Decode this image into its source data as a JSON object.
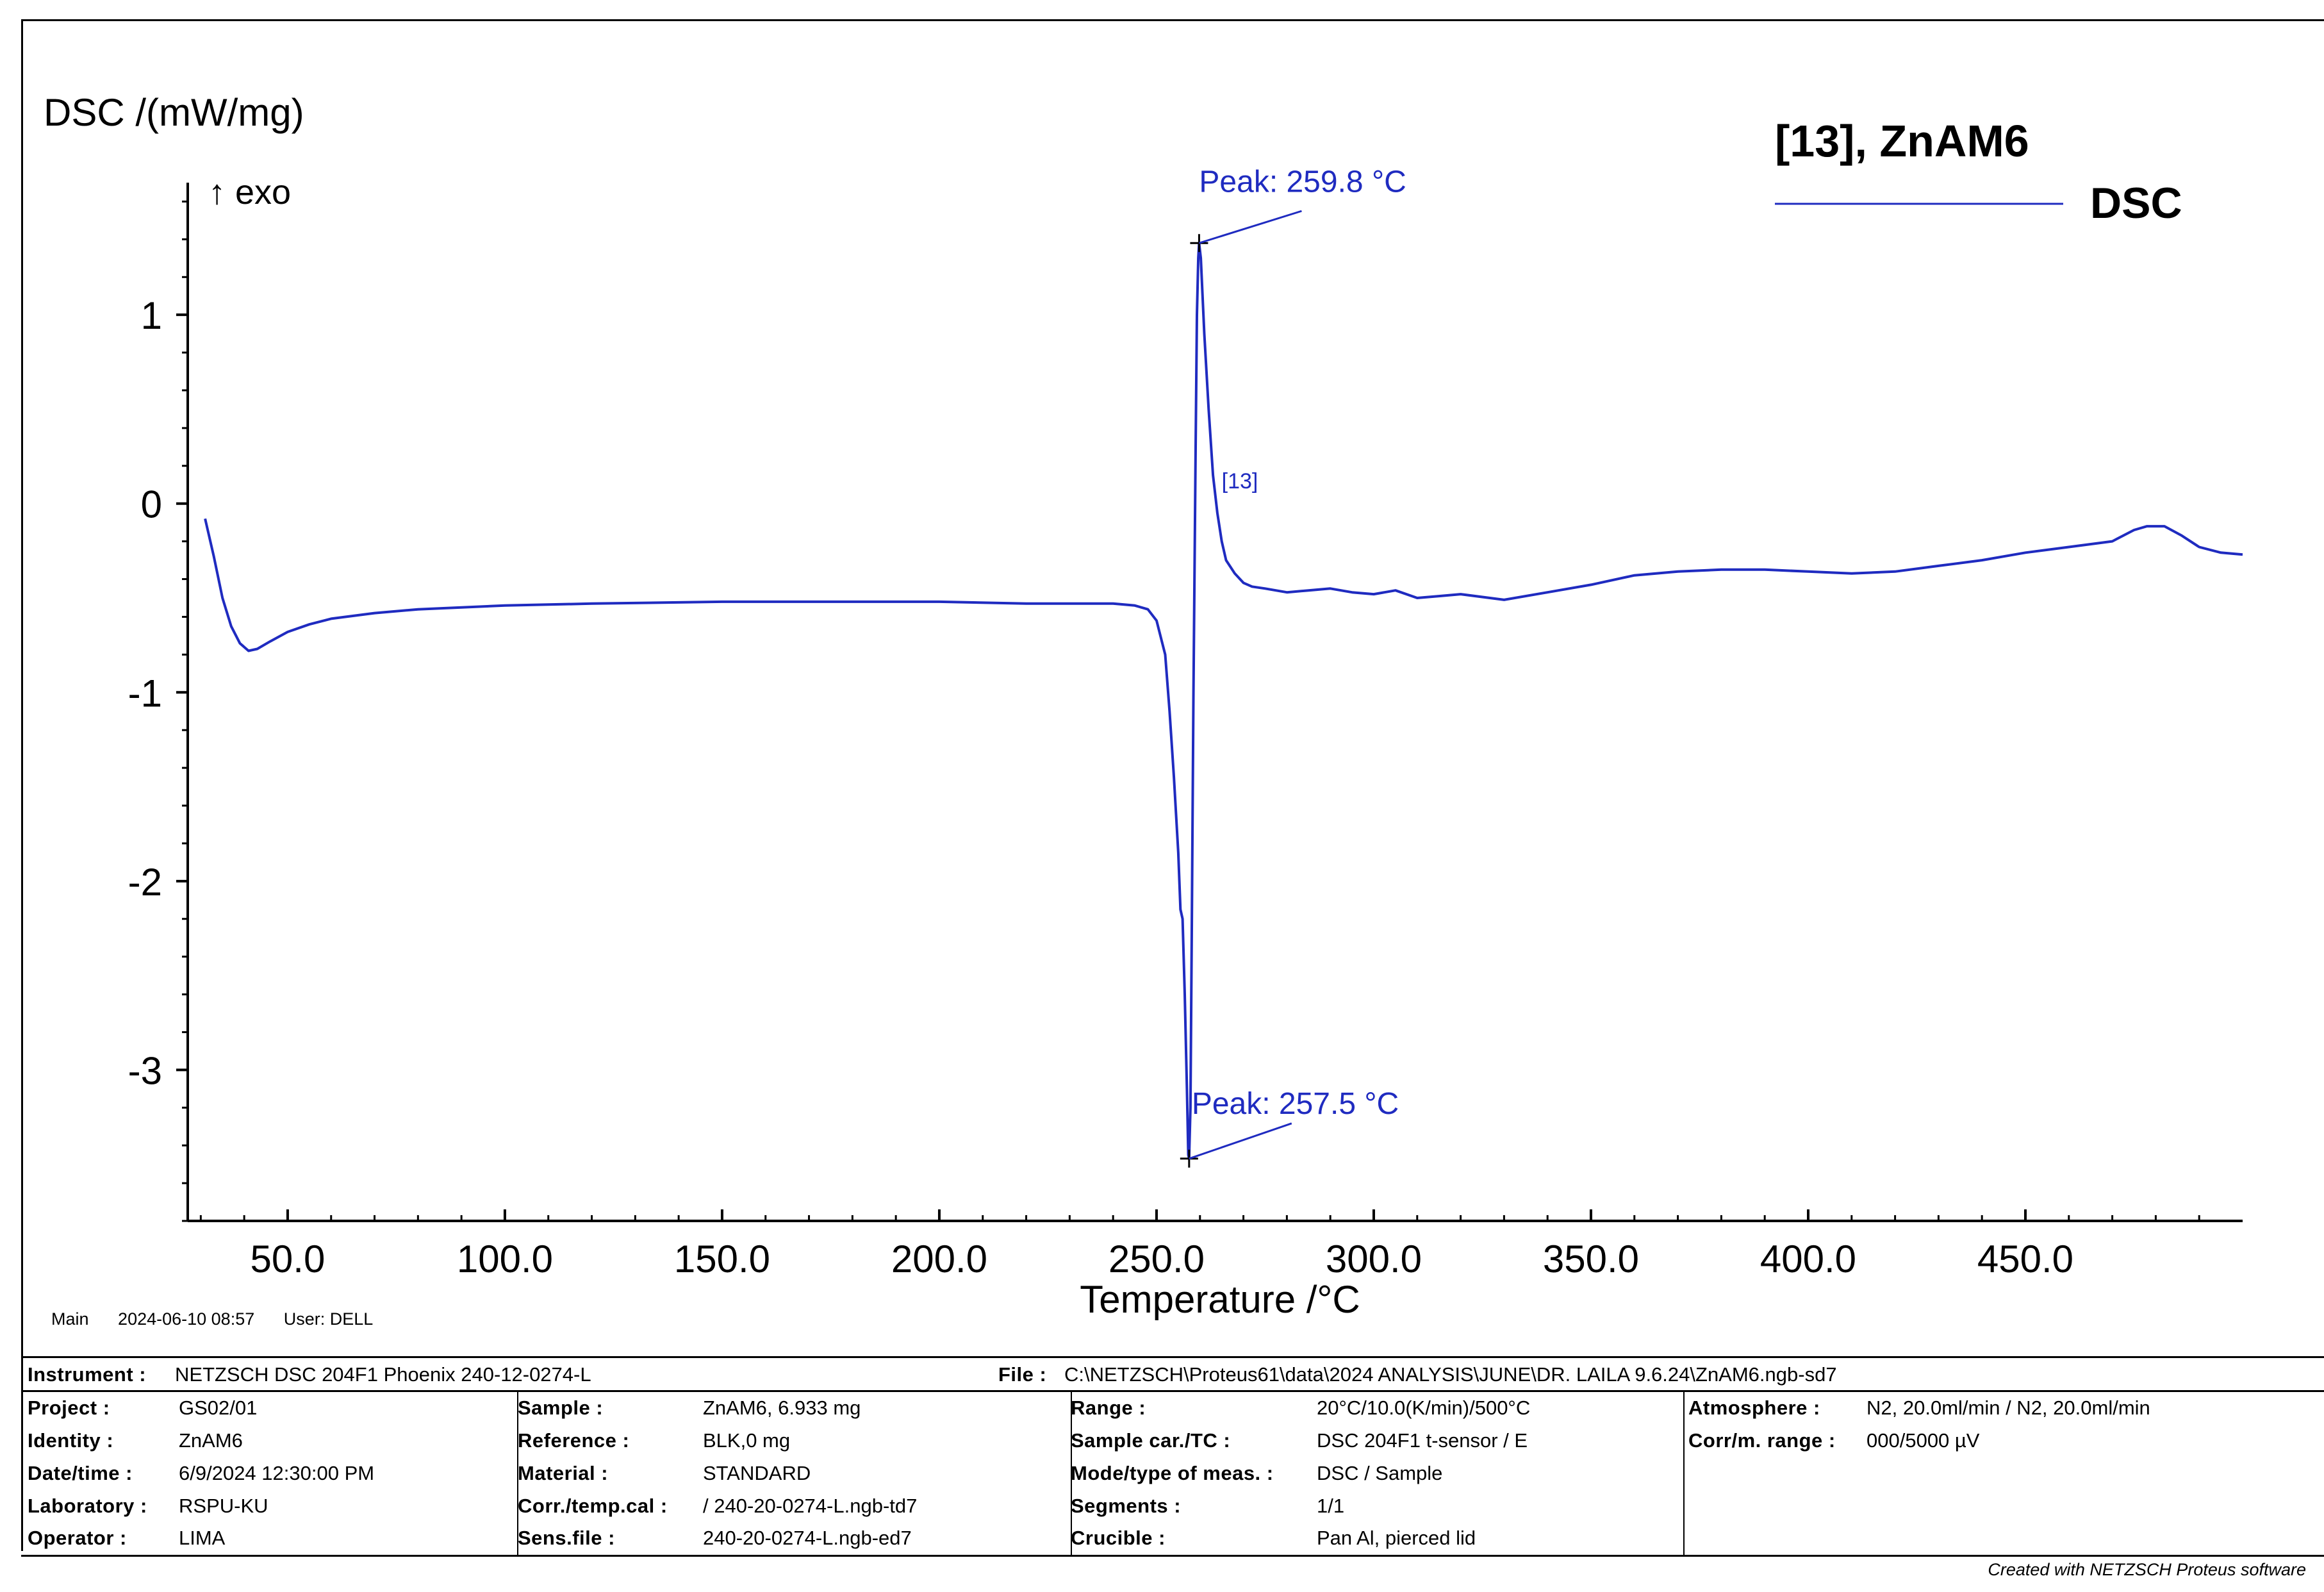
{
  "chart_data": {
    "type": "line",
    "ylabel": "DSC /(mW/mg)",
    "exo_label": "↑ exo",
    "xlabel": "Temperature /°C",
    "xlim": [
      27,
      500
    ],
    "ylim": [
      -3.8,
      1.7
    ],
    "x_ticks": [
      50,
      100,
      150,
      200,
      250,
      300,
      350,
      400,
      450
    ],
    "x_tick_labels": [
      "50.0",
      "100.0",
      "150.0",
      "200.0",
      "250.0",
      "300.0",
      "350.0",
      "400.0",
      "450.0"
    ],
    "y_ticks": [
      1,
      0,
      -1,
      -2,
      -3
    ],
    "y_tick_labels": [
      "1",
      "0",
      "-1",
      "-2",
      "-3"
    ],
    "legend": {
      "title": "[13], ZnAM6",
      "entry": "DSC",
      "position": "top-right"
    },
    "curve_label": "[13]",
    "annotations": [
      {
        "text": "Peak: 259.8 °C",
        "x": 259.8,
        "y": 1.38
      },
      {
        "text": "Peak: 257.5 °C",
        "x": 257.5,
        "y": -3.47
      }
    ],
    "line_color": "#1f2bc0",
    "series": [
      {
        "name": "DSC",
        "x": [
          31,
          33,
          35,
          37,
          39,
          41,
          43,
          46,
          50,
          55,
          60,
          70,
          80,
          100,
          120,
          150,
          180,
          200,
          220,
          240,
          245,
          248,
          250,
          252,
          253,
          254,
          255,
          255.5,
          256,
          256.5,
          257,
          257.3,
          257.5,
          257.8,
          258.1,
          258.5,
          259,
          259.3,
          259.6,
          259.8,
          260.2,
          261,
          262,
          263,
          264,
          265,
          266,
          268,
          270,
          272,
          275,
          280,
          285,
          290,
          295,
          300,
          305,
          310,
          315,
          320,
          330,
          340,
          350,
          360,
          370,
          380,
          390,
          400,
          410,
          420,
          430,
          440,
          450,
          460,
          470,
          475,
          478,
          482,
          486,
          490,
          495,
          500
        ],
        "y": [
          -0.08,
          -0.28,
          -0.5,
          -0.65,
          -0.74,
          -0.78,
          -0.77,
          -0.73,
          -0.68,
          -0.64,
          -0.61,
          -0.58,
          -0.56,
          -0.54,
          -0.53,
          -0.52,
          -0.52,
          -0.52,
          -0.53,
          -0.53,
          -0.54,
          -0.56,
          -0.62,
          -0.8,
          -1.1,
          -1.45,
          -1.85,
          -2.15,
          -2.2,
          -2.6,
          -3.1,
          -3.45,
          -3.47,
          -3.2,
          -2.3,
          -1.0,
          0.3,
          1.0,
          1.3,
          1.38,
          1.3,
          0.9,
          0.5,
          0.15,
          -0.05,
          -0.2,
          -0.3,
          -0.37,
          -0.42,
          -0.44,
          -0.45,
          -0.47,
          -0.46,
          -0.45,
          -0.47,
          -0.48,
          -0.46,
          -0.5,
          -0.49,
          -0.48,
          -0.51,
          -0.47,
          -0.43,
          -0.38,
          -0.36,
          -0.35,
          -0.35,
          -0.36,
          -0.37,
          -0.36,
          -0.33,
          -0.3,
          -0.26,
          -0.23,
          -0.2,
          -0.14,
          -0.12,
          -0.12,
          -0.17,
          -0.23,
          -0.26,
          -0.27
        ]
      }
    ]
  },
  "footer": {
    "meta": {
      "segment": "Main",
      "timestamp": "2024-06-10 08:57",
      "user": "User: DELL"
    },
    "instrument_label": "Instrument :",
    "instrument_value": "NETZSCH DSC 204F1 Phoenix 240-12-0274-L",
    "file_label": "File :",
    "file_value": "C:\\NETZSCH\\Proteus61\\data\\2024 ANALYSIS\\JUNE\\DR. LAILA 9.6.24\\ZnAM6.ngb-sd7",
    "col1": [
      {
        "label": "Project :",
        "value": "GS02/01"
      },
      {
        "label": "Identity :",
        "value": "ZnAM6"
      },
      {
        "label": "Date/time :",
        "value": "6/9/2024 12:30:00 PM"
      },
      {
        "label": "Laboratory :",
        "value": "RSPU-KU"
      },
      {
        "label": "Operator :",
        "value": "LIMA"
      }
    ],
    "col2": [
      {
        "label": "Sample :",
        "value": "ZnAM6, 6.933 mg"
      },
      {
        "label": "Reference :",
        "value": "BLK,0 mg"
      },
      {
        "label": "Material :",
        "value": "STANDARD"
      },
      {
        "label": "Corr./temp.cal :",
        "value": " / 240-20-0274-L.ngb-td7"
      },
      {
        "label": "Sens.file :",
        "value": "240-20-0274-L.ngb-ed7"
      }
    ],
    "col3": [
      {
        "label": "Range :",
        "value": "20°C/10.0(K/min)/500°C"
      },
      {
        "label": "Sample car./TC :",
        "value": "DSC 204F1 t-sensor / E"
      },
      {
        "label": "Mode/type of meas. :",
        "value": "DSC / Sample"
      },
      {
        "label": "Segments :",
        "value": "1/1"
      },
      {
        "label": "Crucible :",
        "value": "Pan Al, pierced lid"
      }
    ],
    "col4": [
      {
        "label": "Atmosphere :",
        "value": "N2, 20.0ml/min / N2, 20.0ml/min"
      },
      {
        "label": "Corr/m. range :",
        "value": "000/5000 µV"
      }
    ],
    "credit": "Created with NETZSCH Proteus software"
  }
}
